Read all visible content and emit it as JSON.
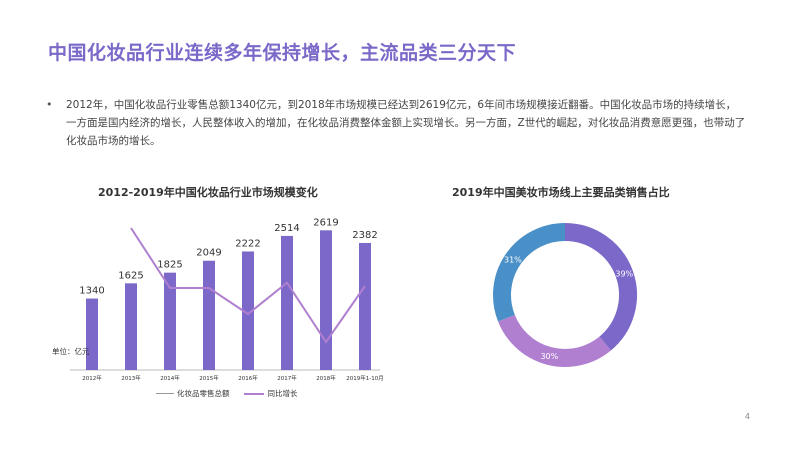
{
  "slide": {
    "title": "中国化妆品行业连续多年保持增长，主流品类三分天下",
    "bullet_marker": "•",
    "bullet_text": "2012年，中国化妆品行业零售总额1340亿元，到2018年市场规模已经达到2619亿元，6年间市场规模接近翻番。中国化妆品市场的持续增长，一方面是国内经济的增长，人民整体收入的增加，在化妆品消费整体金额上实现增长。另一方面，Z世代的崛起，对化妆品消费意愿更强，也带动了化妆品市场的增长。",
    "page_number": "4"
  },
  "chart_data": [
    {
      "type": "bar",
      "title": "2012-2019年中国化妆品行业市场规模变化",
      "unit_label": "单位：亿元",
      "categories": [
        "2012年",
        "2013年",
        "2014年",
        "2015年",
        "2016年",
        "2017年",
        "2018年",
        "2019年1-10月"
      ],
      "series": [
        {
          "name": "化妆品零售总额",
          "type": "bar",
          "values": [
            1340,
            1625,
            1825,
            2049,
            2222,
            2514,
            2619,
            2382
          ],
          "color": "#7b68c8"
        },
        {
          "name": "同比增长",
          "type": "line",
          "values": [
            null,
            21.3,
            12.3,
            12.3,
            8.4,
            13.1,
            4.2,
            12.6
          ],
          "color": "#b07fd0"
        }
      ],
      "ylim": [
        0,
        3000
      ],
      "line_ylim": [
        0,
        24
      ],
      "grid": false,
      "legend": "bottom"
    },
    {
      "type": "pie",
      "title": "2019年中国美妆市场线上主要品类销售占比",
      "donut": true,
      "slices": [
        {
          "value": 39,
          "label": "39%",
          "color": "#7b68c8"
        },
        {
          "value": 30,
          "label": "30%",
          "color": "#b07fd0"
        },
        {
          "value": 31,
          "label": "31%",
          "color": "#4a90c8"
        }
      ]
    }
  ]
}
